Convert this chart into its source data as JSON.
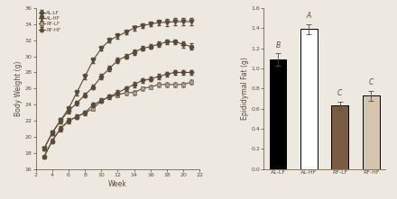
{
  "left_chart": {
    "weeks": [
      3,
      4,
      5,
      6,
      7,
      8,
      9,
      10,
      11,
      12,
      13,
      14,
      15,
      16,
      17,
      18,
      19,
      20,
      21
    ],
    "AL_LF": [
      18.5,
      20.5,
      22.0,
      23.2,
      24.2,
      25.2,
      26.2,
      27.5,
      28.5,
      29.5,
      30.0,
      30.5,
      31.0,
      31.2,
      31.5,
      31.8,
      31.8,
      31.5,
      31.2
    ],
    "AL_HF": [
      18.5,
      20.5,
      22.0,
      23.5,
      25.5,
      27.5,
      29.5,
      31.0,
      32.0,
      32.5,
      33.0,
      33.5,
      33.8,
      34.0,
      34.2,
      34.2,
      34.3,
      34.3,
      34.3
    ],
    "RF_LF": [
      17.5,
      19.5,
      21.0,
      22.0,
      22.5,
      23.0,
      23.5,
      24.5,
      25.0,
      25.2,
      25.5,
      25.5,
      26.0,
      26.2,
      26.5,
      26.5,
      26.5,
      26.5,
      26.8
    ],
    "RF_HF": [
      17.5,
      19.5,
      21.0,
      22.0,
      22.5,
      23.0,
      24.0,
      24.5,
      25.0,
      25.5,
      26.0,
      26.5,
      27.0,
      27.2,
      27.5,
      27.8,
      28.0,
      28.0,
      28.0
    ],
    "AL_LF_err": [
      0.2,
      0.3,
      0.3,
      0.3,
      0.3,
      0.3,
      0.3,
      0.3,
      0.3,
      0.3,
      0.3,
      0.3,
      0.3,
      0.3,
      0.3,
      0.3,
      0.3,
      0.4,
      0.4
    ],
    "AL_HF_err": [
      0.2,
      0.3,
      0.3,
      0.3,
      0.3,
      0.3,
      0.3,
      0.3,
      0.3,
      0.3,
      0.3,
      0.3,
      0.3,
      0.3,
      0.3,
      0.4,
      0.4,
      0.4,
      0.4
    ],
    "RF_LF_err": [
      0.2,
      0.3,
      0.3,
      0.3,
      0.3,
      0.3,
      0.3,
      0.3,
      0.3,
      0.3,
      0.3,
      0.3,
      0.3,
      0.3,
      0.3,
      0.3,
      0.3,
      0.3,
      0.3
    ],
    "RF_HF_err": [
      0.2,
      0.3,
      0.3,
      0.3,
      0.3,
      0.3,
      0.3,
      0.3,
      0.3,
      0.3,
      0.3,
      0.3,
      0.3,
      0.3,
      0.3,
      0.3,
      0.3,
      0.3,
      0.3
    ],
    "xlabel": "Week",
    "ylabel": "Body Weight (g)",
    "xlim": [
      2,
      22
    ],
    "ylim": [
      16,
      36
    ],
    "xticks": [
      2,
      4,
      6,
      8,
      10,
      12,
      14,
      16,
      18,
      20,
      22
    ],
    "yticks": [
      16,
      18,
      20,
      22,
      24,
      26,
      28,
      30,
      32,
      34,
      36
    ]
  },
  "right_chart": {
    "categories": [
      "AL-LF",
      "AL-HF",
      "RF-LF",
      "RF-HF"
    ],
    "values": [
      1.09,
      1.39,
      0.63,
      0.73
    ],
    "errors": [
      0.06,
      0.05,
      0.04,
      0.05
    ],
    "colors": [
      "#000000",
      "#ffffff",
      "#7a5c45",
      "#d4c4b0"
    ],
    "edge_colors": [
      "#000000",
      "#000000",
      "#000000",
      "#000000"
    ],
    "stat_labels": [
      "B",
      "A",
      "C",
      "C"
    ],
    "ylabel": "Epididymal Fat (g)",
    "ylim": [
      0,
      1.6
    ],
    "yticks": [
      0.0,
      0.2,
      0.4,
      0.6,
      0.8,
      1.0,
      1.2,
      1.4,
      1.6
    ]
  },
  "line_color": "#5a4a3a",
  "bg_color": "#ede8e0"
}
